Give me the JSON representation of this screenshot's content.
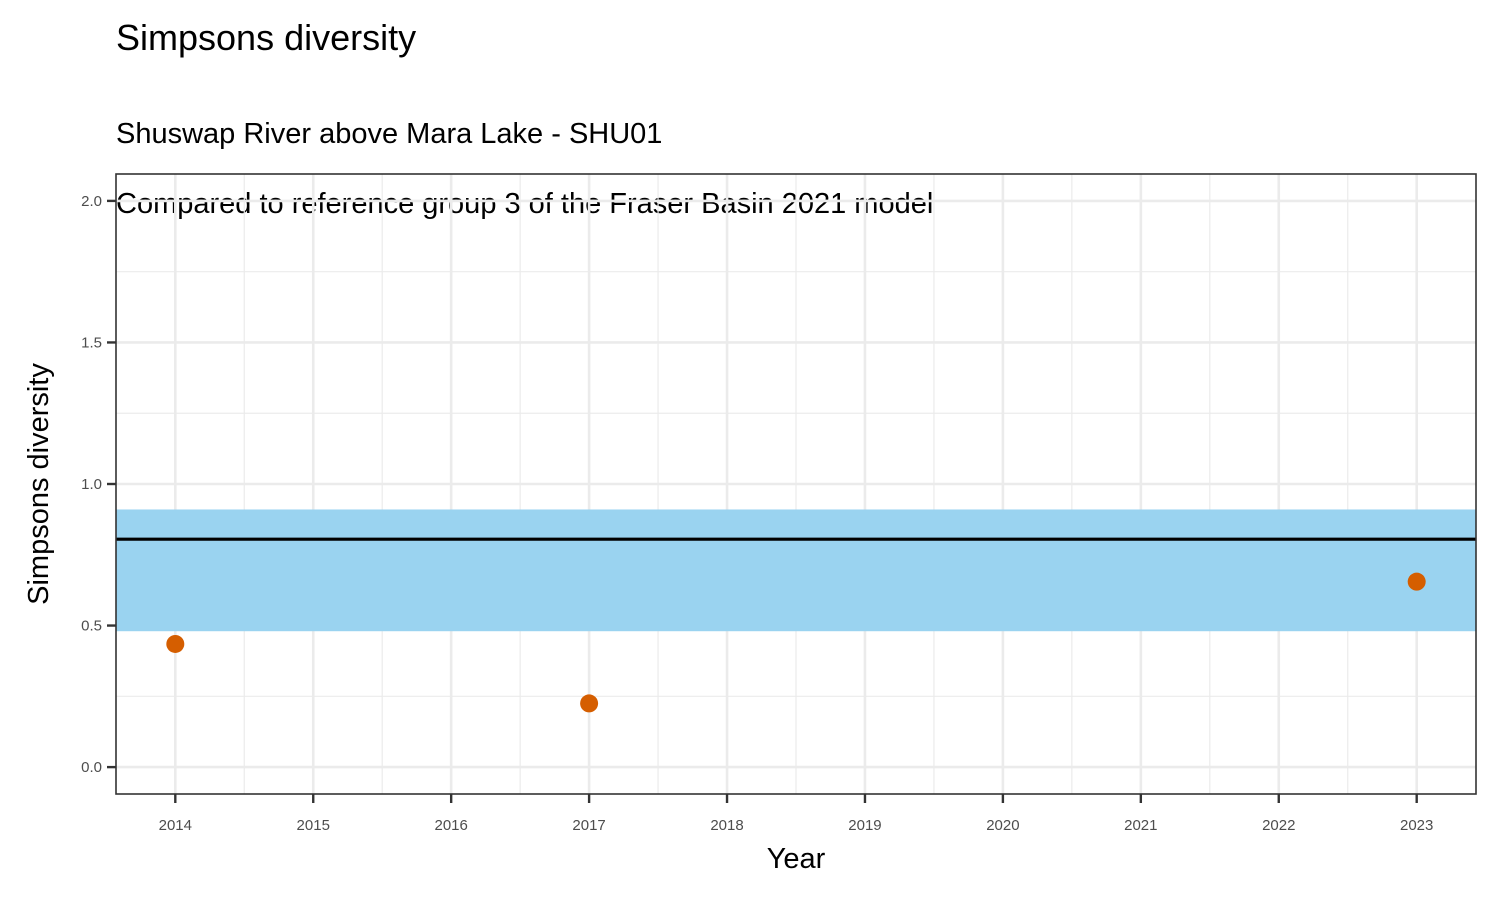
{
  "chart_data": {
    "type": "scatter",
    "title": "Simpsons diversity",
    "subtitle_lines": [
      "Shuswap River above Mara Lake - SHU01",
      "Compared to reference group 3 of the Fraser Basin 2021 model"
    ],
    "xlabel": "Year",
    "ylabel": "Simpsons diversity",
    "xlim": [
      2013.57,
      2023.43
    ],
    "ylim": [
      -0.095,
      2.095
    ],
    "x_ticks": [
      2014,
      2015,
      2016,
      2017,
      2018,
      2019,
      2020,
      2021,
      2022,
      2023
    ],
    "y_ticks": [
      0.0,
      0.5,
      1.0,
      1.5,
      2.0
    ],
    "y_tick_labels": [
      "0.0",
      "0.5",
      "1.0",
      "1.5",
      "2.0"
    ],
    "reference_band": {
      "ymin": 0.48,
      "ymax": 0.91,
      "color": "#9AD3F0"
    },
    "reference_line": {
      "y": 0.805,
      "color": "#000000"
    },
    "points": [
      {
        "x": 2014,
        "y": 0.435
      },
      {
        "x": 2017,
        "y": 0.225
      },
      {
        "x": 2023,
        "y": 0.655
      }
    ],
    "point_color": "#D55E00",
    "grid": true,
    "legend": "none"
  }
}
